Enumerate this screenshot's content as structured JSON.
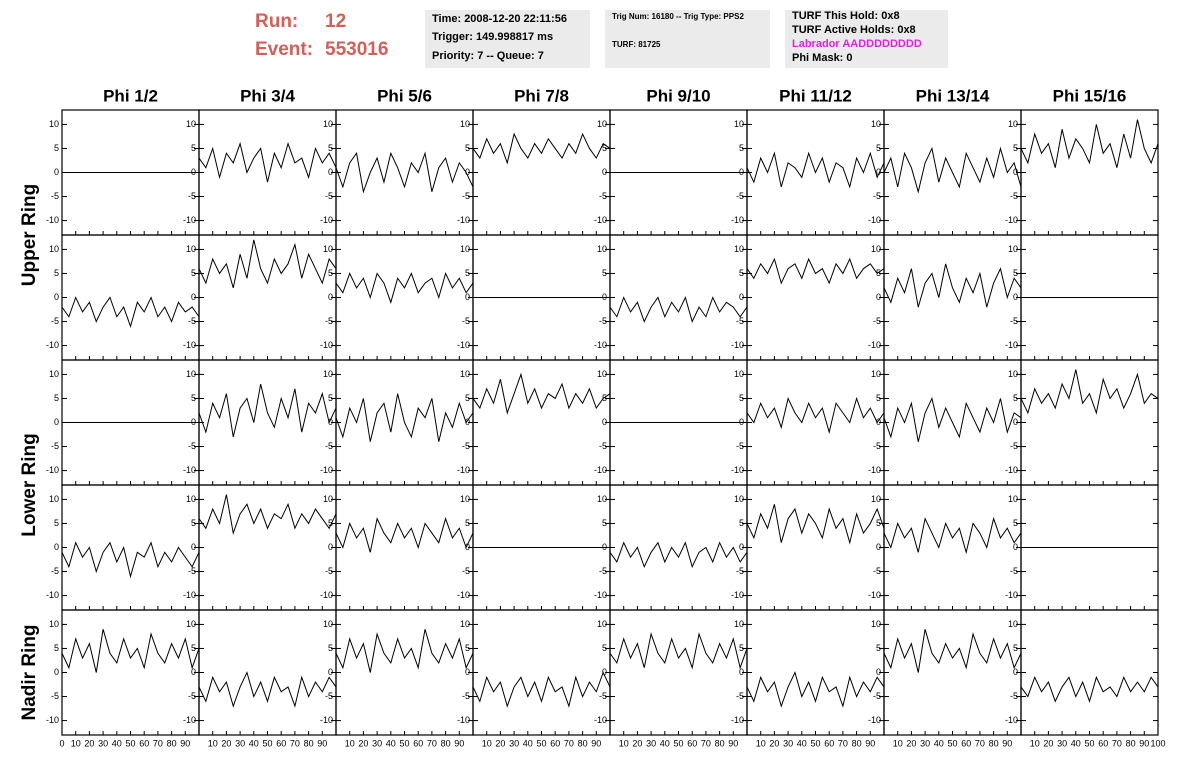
{
  "header": {
    "run_label": "Run:",
    "run": "12",
    "event_label": "Event:",
    "event": "553016",
    "time": "Time: 2008-12-20 22:11:56",
    "trigger": "Trigger: 149.998817 ms",
    "priority": "Priority: 7 -- Queue: 7",
    "trig_num": "Trig Num: 16180 -- Trig Type: PPS2",
    "turf": "TURF: 81725",
    "turf_hold": "TURF This Hold: 0x8",
    "turf_active": "TURF Active Holds: 0x8",
    "labrador": "Labrador AADDDDDDDD",
    "phi_mask": "Phi Mask: 0"
  },
  "chart_data": {
    "type": "waveform-grid",
    "columns": [
      "Phi 1/2",
      "Phi 3/4",
      "Phi 5/6",
      "Phi 7/8",
      "Phi 9/10",
      "Phi 11/12",
      "Phi 13/14",
      "Phi 15/16"
    ],
    "row_labels": [
      "Upper Ring",
      "Lower Ring",
      "Nadir Ring"
    ],
    "color": "#000000",
    "x": [
      0,
      5,
      10,
      15,
      20,
      25,
      30,
      35,
      40,
      45,
      50,
      55,
      60,
      65,
      70,
      75,
      80,
      85,
      90,
      95,
      100
    ],
    "xlim": [
      0,
      100
    ],
    "xticks": [
      0,
      10,
      20,
      30,
      40,
      50,
      60,
      70,
      80,
      90,
      100
    ],
    "ylim": [
      -13,
      13
    ],
    "yticks": [
      -10,
      -5,
      0,
      5,
      10
    ],
    "rows": [
      [
        [
          0,
          0,
          0,
          0,
          0,
          0,
          0,
          0,
          0,
          0,
          0,
          0,
          0,
          0,
          0,
          0,
          0,
          0,
          0,
          0,
          0
        ],
        [
          3,
          1,
          5,
          -1,
          4,
          2,
          6,
          0,
          3,
          5,
          -2,
          4,
          1,
          6,
          2,
          3,
          -1,
          5,
          2,
          4,
          1
        ],
        [
          1,
          -3,
          2,
          4,
          -4,
          0,
          3,
          -2,
          4,
          1,
          -3,
          2,
          0,
          4,
          -4,
          1,
          3,
          -2,
          2,
          0,
          -3
        ],
        [
          5,
          3,
          7,
          4,
          6,
          2,
          8,
          5,
          3,
          6,
          4,
          7,
          5,
          3,
          6,
          4,
          8,
          5,
          3,
          6,
          5
        ],
        [
          0,
          0,
          0,
          0,
          0,
          0,
          0,
          0,
          0,
          0,
          0,
          0,
          0,
          0,
          0,
          0,
          0,
          0,
          0,
          0,
          0
        ],
        [
          1,
          -2,
          3,
          0,
          4,
          -3,
          2,
          1,
          -1,
          4,
          0,
          3,
          -2,
          2,
          1,
          -3,
          3,
          0,
          4,
          -1,
          2
        ],
        [
          0,
          3,
          -3,
          4,
          1,
          -4,
          2,
          5,
          -2,
          3,
          0,
          -3,
          4,
          1,
          -2,
          3,
          -1,
          5,
          0,
          2,
          -3
        ],
        [
          5,
          2,
          8,
          4,
          6,
          1,
          9,
          3,
          7,
          5,
          2,
          10,
          4,
          6,
          1,
          8,
          3,
          11,
          5,
          2,
          6
        ]
      ],
      [
        [
          -2,
          -4,
          0,
          -3,
          -1,
          -5,
          -2,
          0,
          -4,
          -2,
          -6,
          -1,
          -3,
          0,
          -4,
          -2,
          -5,
          -1,
          -3,
          -2,
          -4
        ],
        [
          6,
          3,
          8,
          5,
          7,
          2,
          9,
          4,
          12,
          6,
          3,
          8,
          5,
          7,
          11,
          4,
          9,
          6,
          3,
          8,
          6
        ],
        [
          3,
          1,
          5,
          2,
          4,
          0,
          5,
          3,
          -1,
          4,
          2,
          5,
          1,
          3,
          4,
          0,
          5,
          2,
          4,
          1,
          3
        ],
        [
          0,
          0,
          0,
          0,
          0,
          0,
          0,
          0,
          0,
          0,
          0,
          0,
          0,
          0,
          0,
          0,
          0,
          0,
          0,
          0,
          0
        ],
        [
          -2,
          -4,
          0,
          -3,
          -1,
          -5,
          -2,
          0,
          -4,
          -1,
          -3,
          0,
          -5,
          -2,
          -4,
          0,
          -3,
          -1,
          -2,
          -4,
          -2
        ],
        [
          6,
          4,
          7,
          5,
          8,
          3,
          6,
          7,
          4,
          8,
          5,
          6,
          3,
          7,
          5,
          8,
          4,
          6,
          7,
          5,
          6
        ],
        [
          2,
          -1,
          4,
          1,
          6,
          -2,
          3,
          5,
          0,
          7,
          2,
          -1,
          4,
          1,
          5,
          -2,
          3,
          6,
          0,
          4,
          2
        ],
        [
          0,
          0,
          0,
          0,
          0,
          0,
          0,
          0,
          0,
          0,
          0,
          0,
          0,
          0,
          0,
          0,
          0,
          0,
          0,
          0,
          0
        ]
      ],
      [
        [
          0,
          0,
          0,
          0,
          0,
          0,
          0,
          0,
          0,
          0,
          0,
          0,
          0,
          0,
          0,
          0,
          0,
          0,
          0,
          0,
          0
        ],
        [
          2,
          -2,
          4,
          1,
          6,
          -3,
          3,
          5,
          0,
          8,
          2,
          -1,
          5,
          1,
          7,
          -2,
          4,
          2,
          6,
          0,
          3
        ],
        [
          1,
          -3,
          3,
          0,
          5,
          -4,
          2,
          4,
          -2,
          6,
          0,
          -3,
          3,
          1,
          5,
          -4,
          2,
          -1,
          4,
          0,
          2
        ],
        [
          5,
          3,
          7,
          4,
          9,
          2,
          6,
          10,
          4,
          7,
          3,
          6,
          5,
          8,
          3,
          6,
          4,
          7,
          3,
          5,
          6
        ],
        [
          0,
          0,
          0,
          0,
          0,
          0,
          0,
          0,
          0,
          0,
          0,
          0,
          0,
          0,
          0,
          0,
          0,
          0,
          0,
          0,
          0
        ],
        [
          2,
          0,
          4,
          1,
          3,
          -1,
          5,
          2,
          0,
          4,
          1,
          3,
          -2,
          4,
          2,
          0,
          5,
          1,
          3,
          0,
          2
        ],
        [
          1,
          -3,
          3,
          0,
          4,
          -4,
          2,
          5,
          -1,
          3,
          0,
          -3,
          4,
          1,
          -2,
          3,
          0,
          5,
          -2,
          2,
          1
        ],
        [
          5,
          2,
          7,
          4,
          6,
          3,
          8,
          5,
          11,
          4,
          6,
          2,
          9,
          5,
          7,
          3,
          6,
          10,
          4,
          6,
          5
        ]
      ],
      [
        [
          -1,
          -4,
          1,
          -2,
          0,
          -5,
          -1,
          1,
          -3,
          0,
          -6,
          -1,
          -2,
          1,
          -4,
          -1,
          -3,
          0,
          -2,
          -4,
          -1
        ],
        [
          6,
          4,
          8,
          5,
          11,
          3,
          7,
          9,
          5,
          8,
          4,
          7,
          6,
          9,
          4,
          7,
          5,
          8,
          6,
          4,
          7
        ],
        [
          3,
          0,
          5,
          2,
          4,
          -1,
          6,
          3,
          1,
          5,
          2,
          4,
          0,
          5,
          3,
          1,
          6,
          2,
          4,
          0,
          3
        ],
        [
          0,
          0,
          0,
          0,
          0,
          0,
          0,
          0,
          0,
          0,
          0,
          0,
          0,
          0,
          0,
          0,
          0,
          0,
          0,
          0,
          0
        ],
        [
          -1,
          -3,
          1,
          -2,
          0,
          -4,
          -1,
          1,
          -3,
          0,
          -2,
          1,
          -4,
          -1,
          0,
          -3,
          1,
          -2,
          0,
          -3,
          -1
        ],
        [
          5,
          2,
          7,
          4,
          9,
          1,
          6,
          8,
          3,
          7,
          5,
          2,
          8,
          4,
          6,
          1,
          7,
          3,
          5,
          8,
          4
        ],
        [
          3,
          0,
          5,
          2,
          4,
          -1,
          6,
          3,
          0,
          5,
          2,
          4,
          -1,
          5,
          3,
          0,
          6,
          2,
          4,
          1,
          3
        ],
        [
          0,
          0,
          0,
          0,
          0,
          0,
          0,
          0,
          0,
          0,
          0,
          0,
          0,
          0,
          0,
          0,
          0,
          0,
          0,
          0,
          0
        ]
      ],
      [
        [
          4,
          1,
          7,
          3,
          6,
          0,
          9,
          4,
          2,
          7,
          3,
          5,
          1,
          8,
          4,
          2,
          6,
          3,
          7,
          1,
          5
        ],
        [
          -3,
          -6,
          -1,
          -4,
          -2,
          -7,
          -3,
          0,
          -5,
          -2,
          -6,
          -1,
          -4,
          -3,
          -7,
          -1,
          -5,
          -2,
          -4,
          -1,
          -3
        ],
        [
          4,
          1,
          7,
          3,
          6,
          0,
          8,
          4,
          2,
          7,
          3,
          5,
          1,
          9,
          4,
          2,
          6,
          3,
          7,
          1,
          4
        ],
        [
          -3,
          -6,
          -1,
          -4,
          -2,
          -7,
          -3,
          -1,
          -5,
          -2,
          -6,
          -1,
          -4,
          -3,
          -7,
          -1,
          -5,
          -2,
          -4,
          0,
          -3
        ],
        [
          4,
          2,
          7,
          3,
          6,
          1,
          8,
          4,
          2,
          7,
          3,
          5,
          1,
          8,
          4,
          2,
          6,
          3,
          7,
          1,
          5
        ],
        [
          -3,
          -6,
          -1,
          -4,
          -2,
          -7,
          -3,
          0,
          -5,
          -2,
          -6,
          -1,
          -4,
          -3,
          -7,
          -1,
          -5,
          -2,
          -4,
          -1,
          -3
        ],
        [
          4,
          1,
          7,
          3,
          6,
          0,
          9,
          4,
          2,
          6,
          3,
          5,
          1,
          8,
          4,
          2,
          7,
          3,
          6,
          1,
          4
        ],
        [
          -3,
          -5,
          -1,
          -4,
          -2,
          -6,
          -3,
          -1,
          -5,
          -2,
          -6,
          -1,
          -4,
          -3,
          -5,
          -1,
          -4,
          -2,
          -4,
          -1,
          -3
        ]
      ]
    ]
  }
}
